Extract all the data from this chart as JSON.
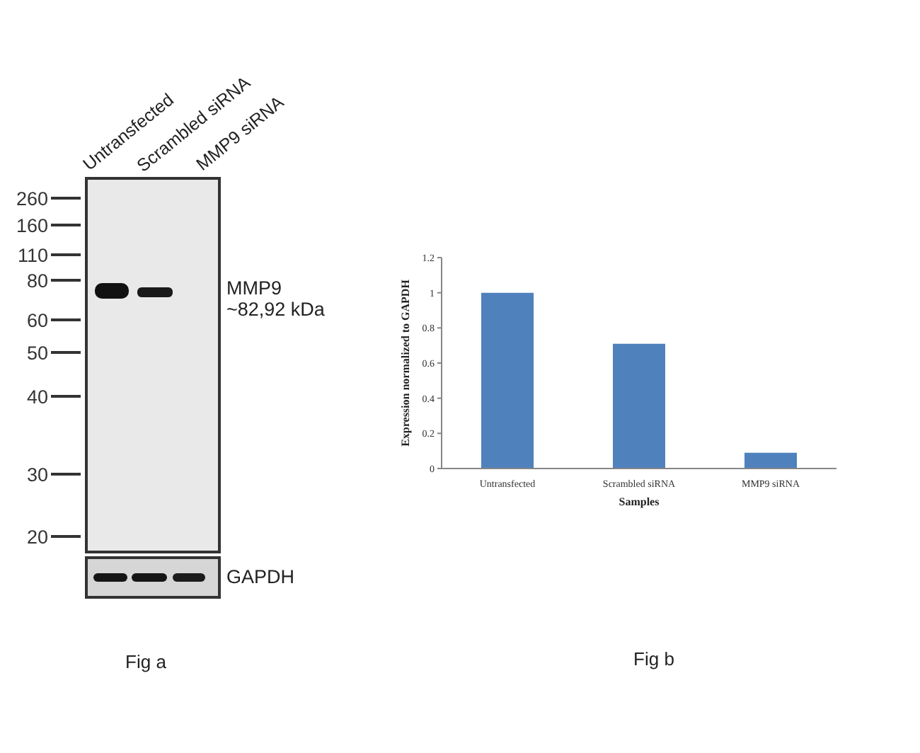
{
  "chart_data": [
    {
      "type": "other",
      "annotations": [
        "Untransfected",
        "Scrambled siRNA",
        "MMP9 siRNA",
        "260",
        "160",
        "110",
        "80",
        "60",
        "50",
        "40",
        "30",
        "20",
        "MMP9",
        "~82,92 kDa",
        "GAPDH",
        "Fig a"
      ]
    },
    {
      "type": "bar",
      "categories": [
        "Untransfected",
        "Scrambled siRNA",
        "MMP9 siRNA"
      ],
      "values": [
        1,
        0.71,
        0.09
      ],
      "color": "#4f81bd",
      "ylim": [
        0,
        1.2
      ],
      "yticks": [
        0,
        0.2,
        0.4,
        0.6,
        0.8,
        1,
        1.2
      ],
      "xlabel": "Samples",
      "ylabel": "Expression normalized to GAPDH",
      "annotations": [
        "Fig b"
      ]
    }
  ]
}
